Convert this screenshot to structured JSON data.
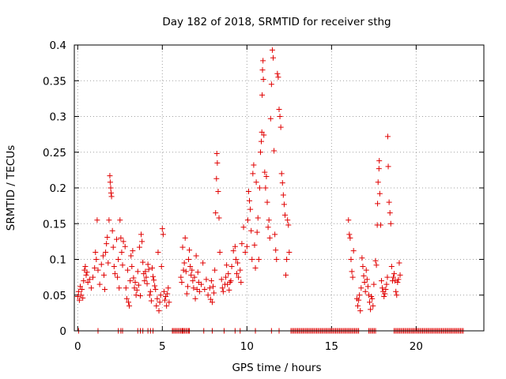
{
  "chart_data": {
    "type": "scatter",
    "title": "Day 182 of 2018, SRMTID for receiver sthg",
    "xlabel": "GPS time / hours",
    "ylabel": "SRMTID / TECUs",
    "xlim": [
      -0.2,
      24.0
    ],
    "ylim": [
      0,
      0.4
    ],
    "xticks": [
      0,
      5,
      10,
      15,
      20
    ],
    "yticks": [
      0,
      0.05,
      0.1,
      0.15,
      0.2,
      0.25,
      0.3,
      0.35,
      0.4
    ],
    "ytick_labels": [
      "0",
      "0.05",
      "0.1",
      "0.15",
      "0.2",
      "0.25",
      "0.3",
      "0.35",
      "0.4"
    ],
    "grid": true,
    "marker": "+",
    "series": [
      {
        "name": "SRMTID",
        "color": "#e00000",
        "points": [
          [
            0.0,
            0.048
          ],
          [
            0.05,
            0.055
          ],
          [
            0.1,
            0.043
          ],
          [
            0.15,
            0.062
          ],
          [
            0.2,
            0.05
          ],
          [
            0.25,
            0.058
          ],
          [
            0.3,
            0.046
          ],
          [
            0.35,
            0.07
          ],
          [
            0.4,
            0.085
          ],
          [
            0.45,
            0.09
          ],
          [
            0.5,
            0.078
          ],
          [
            0.55,
            0.082
          ],
          [
            0.6,
            0.068
          ],
          [
            0.7,
            0.072
          ],
          [
            0.8,
            0.06
          ],
          [
            0.9,
            0.075
          ],
          [
            1.0,
            0.088
          ],
          [
            1.05,
            0.11
          ],
          [
            1.1,
            0.1
          ],
          [
            1.15,
            0.155
          ],
          [
            1.2,
            0.085
          ],
          [
            1.3,
            0.065
          ],
          [
            1.4,
            0.093
          ],
          [
            1.5,
            0.105
          ],
          [
            1.55,
            0.078
          ],
          [
            1.6,
            0.058
          ],
          [
            1.65,
            0.11
          ],
          [
            1.7,
            0.122
          ],
          [
            1.75,
            0.131
          ],
          [
            1.8,
            0.095
          ],
          [
            1.85,
            0.155
          ],
          [
            1.9,
            0.217
          ],
          [
            1.92,
            0.208
          ],
          [
            1.95,
            0.2
          ],
          [
            1.97,
            0.193
          ],
          [
            2.0,
            0.188
          ],
          [
            2.05,
            0.14
          ],
          [
            2.1,
            0.117
          ],
          [
            2.15,
            0.09
          ],
          [
            2.2,
            0.08
          ],
          [
            2.3,
            0.128
          ],
          [
            2.35,
            0.075
          ],
          [
            2.4,
            0.1
          ],
          [
            2.45,
            0.06
          ],
          [
            2.5,
            0.155
          ],
          [
            2.55,
            0.13
          ],
          [
            2.6,
            0.11
          ],
          [
            2.65,
            0.092
          ],
          [
            2.7,
            0.125
          ],
          [
            2.8,
            0.118
          ],
          [
            2.85,
            0.06
          ],
          [
            2.9,
            0.045
          ],
          [
            2.95,
            0.085
          ],
          [
            3.0,
            0.04
          ],
          [
            3.05,
            0.035
          ],
          [
            3.1,
            0.07
          ],
          [
            3.15,
            0.105
          ],
          [
            3.2,
            0.09
          ],
          [
            3.25,
            0.112
          ],
          [
            3.3,
            0.074
          ],
          [
            3.35,
            0.06
          ],
          [
            3.4,
            0.068
          ],
          [
            3.45,
            0.05
          ],
          [
            3.5,
            0.057
          ],
          [
            3.55,
            0.083
          ],
          [
            3.6,
            0.064
          ],
          [
            3.65,
            0.117
          ],
          [
            3.7,
            0.049
          ],
          [
            3.75,
            0.135
          ],
          [
            3.8,
            0.125
          ],
          [
            3.85,
            0.096
          ],
          [
            3.9,
            0.08
          ],
          [
            3.95,
            0.07
          ],
          [
            4.0,
            0.083
          ],
          [
            4.05,
            0.075
          ],
          [
            4.1,
            0.066
          ],
          [
            4.15,
            0.093
          ],
          [
            4.2,
            0.086
          ],
          [
            4.25,
            0.05
          ],
          [
            4.3,
            0.055
          ],
          [
            4.35,
            0.042
          ],
          [
            4.4,
            0.088
          ],
          [
            4.45,
            0.076
          ],
          [
            4.5,
            0.071
          ],
          [
            4.55,
            0.063
          ],
          [
            4.6,
            0.058
          ],
          [
            4.65,
            0.035
          ],
          [
            4.7,
            0.045
          ],
          [
            4.75,
            0.11
          ],
          [
            4.8,
            0.028
          ],
          [
            4.85,
            0.04
          ],
          [
            4.9,
            0.05
          ],
          [
            4.95,
            0.09
          ],
          [
            5.0,
            0.143
          ],
          [
            5.05,
            0.135
          ],
          [
            5.1,
            0.055
          ],
          [
            5.15,
            0.043
          ],
          [
            5.2,
            0.048
          ],
          [
            5.25,
            0.035
          ],
          [
            5.3,
            0.052
          ],
          [
            5.35,
            0.06
          ],
          [
            5.4,
            0.04
          ],
          [
            6.1,
            0.075
          ],
          [
            6.15,
            0.068
          ],
          [
            6.2,
            0.117
          ],
          [
            6.25,
            0.085
          ],
          [
            6.3,
            0.095
          ],
          [
            6.35,
            0.13
          ],
          [
            6.4,
            0.083
          ],
          [
            6.45,
            0.052
          ],
          [
            6.5,
            0.062
          ],
          [
            6.55,
            0.1
          ],
          [
            6.6,
            0.113
          ],
          [
            6.65,
            0.09
          ],
          [
            6.7,
            0.078
          ],
          [
            6.75,
            0.085
          ],
          [
            6.8,
            0.07
          ],
          [
            6.85,
            0.06
          ],
          [
            6.9,
            0.075
          ],
          [
            6.95,
            0.045
          ],
          [
            7.0,
            0.105
          ],
          [
            7.05,
            0.058
          ],
          [
            7.1,
            0.082
          ],
          [
            7.15,
            0.068
          ],
          [
            7.2,
            0.055
          ],
          [
            7.3,
            0.065
          ],
          [
            7.4,
            0.095
          ],
          [
            7.5,
            0.058
          ],
          [
            7.6,
            0.072
          ],
          [
            7.7,
            0.05
          ],
          [
            7.8,
            0.06
          ],
          [
            7.85,
            0.044
          ],
          [
            7.9,
            0.07
          ],
          [
            7.95,
            0.04
          ],
          [
            8.0,
            0.062
          ],
          [
            8.05,
            0.053
          ],
          [
            8.1,
            0.085
          ],
          [
            8.15,
            0.165
          ],
          [
            8.2,
            0.213
          ],
          [
            8.22,
            0.248
          ],
          [
            8.25,
            0.235
          ],
          [
            8.3,
            0.195
          ],
          [
            8.35,
            0.158
          ],
          [
            8.4,
            0.11
          ],
          [
            8.5,
            0.072
          ],
          [
            8.55,
            0.06
          ],
          [
            8.6,
            0.055
          ],
          [
            8.7,
            0.065
          ],
          [
            8.75,
            0.075
          ],
          [
            8.8,
            0.092
          ],
          [
            8.85,
            0.065
          ],
          [
            8.9,
            0.08
          ],
          [
            8.95,
            0.057
          ],
          [
            9.0,
            0.068
          ],
          [
            9.05,
            0.07
          ],
          [
            9.1,
            0.09
          ],
          [
            9.2,
            0.112
          ],
          [
            9.3,
            0.118
          ],
          [
            9.35,
            0.1
          ],
          [
            9.4,
            0.08
          ],
          [
            9.45,
            0.095
          ],
          [
            9.5,
            0.075
          ],
          [
            9.6,
            0.085
          ],
          [
            9.65,
            0.068
          ],
          [
            9.7,
            0.122
          ],
          [
            9.8,
            0.145
          ],
          [
            9.9,
            0.11
          ],
          [
            10.0,
            0.118
          ],
          [
            10.05,
            0.155
          ],
          [
            10.1,
            0.195
          ],
          [
            10.15,
            0.182
          ],
          [
            10.2,
            0.17
          ],
          [
            10.25,
            0.14
          ],
          [
            10.3,
            0.1
          ],
          [
            10.35,
            0.22
          ],
          [
            10.4,
            0.232
          ],
          [
            10.45,
            0.12
          ],
          [
            10.5,
            0.088
          ],
          [
            10.55,
            0.208
          ],
          [
            10.6,
            0.138
          ],
          [
            10.65,
            0.158
          ],
          [
            10.7,
            0.1
          ],
          [
            10.75,
            0.2
          ],
          [
            10.8,
            0.25
          ],
          [
            10.85,
            0.265
          ],
          [
            10.88,
            0.278
          ],
          [
            10.9,
            0.33
          ],
          [
            10.92,
            0.365
          ],
          [
            10.95,
            0.378
          ],
          [
            10.97,
            0.352
          ],
          [
            11.0,
            0.274
          ],
          [
            11.05,
            0.222
          ],
          [
            11.1,
            0.2
          ],
          [
            11.15,
            0.216
          ],
          [
            11.2,
            0.18
          ],
          [
            11.25,
            0.145
          ],
          [
            11.3,
            0.155
          ],
          [
            11.35,
            0.13
          ],
          [
            11.4,
            0.297
          ],
          [
            11.45,
            0.345
          ],
          [
            11.5,
            0.393
          ],
          [
            11.55,
            0.382
          ],
          [
            11.6,
            0.252
          ],
          [
            11.65,
            0.135
          ],
          [
            11.7,
            0.113
          ],
          [
            11.75,
            0.1
          ],
          [
            11.8,
            0.36
          ],
          [
            11.85,
            0.355
          ],
          [
            11.9,
            0.31
          ],
          [
            11.95,
            0.3
          ],
          [
            12.0,
            0.285
          ],
          [
            12.05,
            0.22
          ],
          [
            12.1,
            0.207
          ],
          [
            12.15,
            0.19
          ],
          [
            12.2,
            0.177
          ],
          [
            12.25,
            0.162
          ],
          [
            12.3,
            0.078
          ],
          [
            12.35,
            0.1
          ],
          [
            12.4,
            0.155
          ],
          [
            12.45,
            0.148
          ],
          [
            12.5,
            0.11
          ],
          [
            16.0,
            0.155
          ],
          [
            16.05,
            0.135
          ],
          [
            16.1,
            0.13
          ],
          [
            16.15,
            0.1
          ],
          [
            16.2,
            0.083
          ],
          [
            16.25,
            0.075
          ],
          [
            16.3,
            0.112
          ],
          [
            16.5,
            0.045
          ],
          [
            16.55,
            0.035
          ],
          [
            16.6,
            0.043
          ],
          [
            16.65,
            0.05
          ],
          [
            16.7,
            0.028
          ],
          [
            16.75,
            0.06
          ],
          [
            16.8,
            0.102
          ],
          [
            16.85,
            0.09
          ],
          [
            16.9,
            0.077
          ],
          [
            16.95,
            0.068
          ],
          [
            17.0,
            0.055
          ],
          [
            17.05,
            0.085
          ],
          [
            17.1,
            0.072
          ],
          [
            17.15,
            0.062
          ],
          [
            17.2,
            0.05
          ],
          [
            17.25,
            0.04
          ],
          [
            17.3,
            0.03
          ],
          [
            17.35,
            0.048
          ],
          [
            17.4,
            0.045
          ],
          [
            17.45,
            0.035
          ],
          [
            17.5,
            0.065
          ],
          [
            17.6,
            0.098
          ],
          [
            17.65,
            0.092
          ],
          [
            17.7,
            0.148
          ],
          [
            17.72,
            0.178
          ],
          [
            17.75,
            0.208
          ],
          [
            17.8,
            0.227
          ],
          [
            17.82,
            0.238
          ],
          [
            17.85,
            0.192
          ],
          [
            17.9,
            0.148
          ],
          [
            17.95,
            0.07
          ],
          [
            18.0,
            0.06
          ],
          [
            18.05,
            0.055
          ],
          [
            18.1,
            0.048
          ],
          [
            18.15,
            0.052
          ],
          [
            18.2,
            0.058
          ],
          [
            18.25,
            0.065
          ],
          [
            18.3,
            0.075
          ],
          [
            18.32,
            0.272
          ],
          [
            18.35,
            0.23
          ],
          [
            18.4,
            0.18
          ],
          [
            18.45,
            0.165
          ],
          [
            18.5,
            0.15
          ],
          [
            18.55,
            0.09
          ],
          [
            18.6,
            0.07
          ],
          [
            18.65,
            0.075
          ],
          [
            18.7,
            0.08
          ],
          [
            18.75,
            0.07
          ],
          [
            18.8,
            0.055
          ],
          [
            18.85,
            0.05
          ],
          [
            18.9,
            0.068
          ],
          [
            18.95,
            0.072
          ],
          [
            19.0,
            0.095
          ],
          [
            19.05,
            0.078
          ]
        ]
      }
    ],
    "zero_marker_hours": [
      0.05,
      1.2,
      2.4,
      2.55,
      2.65,
      3.55,
      3.7,
      3.85,
      4.15,
      4.3,
      4.45,
      5.6,
      6.2,
      6.6,
      7.45,
      7.95,
      8.65,
      9.3,
      9.6,
      10.5,
      11.45,
      11.9
    ]
  }
}
